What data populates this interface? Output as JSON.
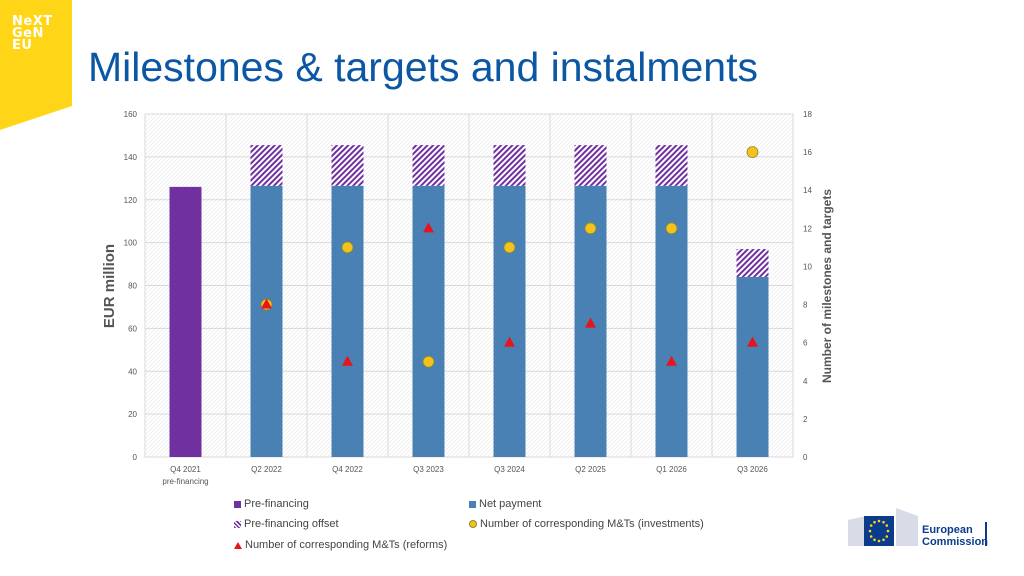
{
  "logo": {
    "line1": "NeXT",
    "line2": "GeN",
    "line3": "EU"
  },
  "title": "Milestones & targets and instalments",
  "chart_data": {
    "type": "bar",
    "categories": [
      "Q4 2021",
      "Q2 2022",
      "Q4 2022",
      "Q3 2023",
      "Q3 2024",
      "Q2 2025",
      "Q1 2026",
      "Q3 2026"
    ],
    "category_sublabels": [
      "pre-financing",
      "",
      "",
      "",
      "",
      "",
      "",
      ""
    ],
    "ylabel": "EUR million",
    "y2label": "Number of milestones and targets",
    "ylim": [
      0,
      160
    ],
    "y2lim": [
      0,
      18
    ],
    "yticks": [
      "0",
      "20",
      "40",
      "60",
      "80",
      "100",
      "120",
      "140",
      "160"
    ],
    "y2ticks": [
      "0",
      "2",
      "4",
      "6",
      "8",
      "10",
      "12",
      "14",
      "16",
      "18"
    ],
    "grid": true,
    "legend_position": "bottom",
    "series": [
      {
        "name": "Pre-financing",
        "kind": "bar",
        "axis": "left",
        "color": "#7030a0",
        "values": [
          126,
          0,
          0,
          0,
          0,
          0,
          0,
          0
        ]
      },
      {
        "name": "Net payment",
        "kind": "bar",
        "axis": "left",
        "color": "#4a81b5",
        "values": [
          0,
          126.5,
          126.5,
          126.5,
          126.5,
          126.5,
          126.5,
          84
        ]
      },
      {
        "name": "Pre-financing offset",
        "kind": "bar-stacked-hatched",
        "axis": "left",
        "color": "#7030a0",
        "values": [
          0,
          19,
          19,
          19,
          19,
          19,
          19,
          13
        ]
      },
      {
        "name": "Number of corresponding M&Ts (investments)",
        "kind": "marker-circle",
        "axis": "right",
        "color": "#f4c21c",
        "values": [
          null,
          8,
          11,
          5,
          11,
          12,
          12,
          16
        ]
      },
      {
        "name": "Number of corresponding M&Ts (reforms)",
        "kind": "marker-triangle",
        "axis": "right",
        "color": "#e8141b",
        "values": [
          null,
          8,
          5,
          12,
          6,
          7,
          5,
          6
        ]
      }
    ]
  },
  "legend": {
    "pre_financing": "Pre-financing",
    "net_payment": "Net payment",
    "offset": "Pre-financing offset",
    "investments": "Number of corresponding M&Ts (investments)",
    "reforms": "Number of corresponding M&Ts (reforms)"
  },
  "footer": {
    "ec_line1": "European",
    "ec_line2": "Commission"
  }
}
